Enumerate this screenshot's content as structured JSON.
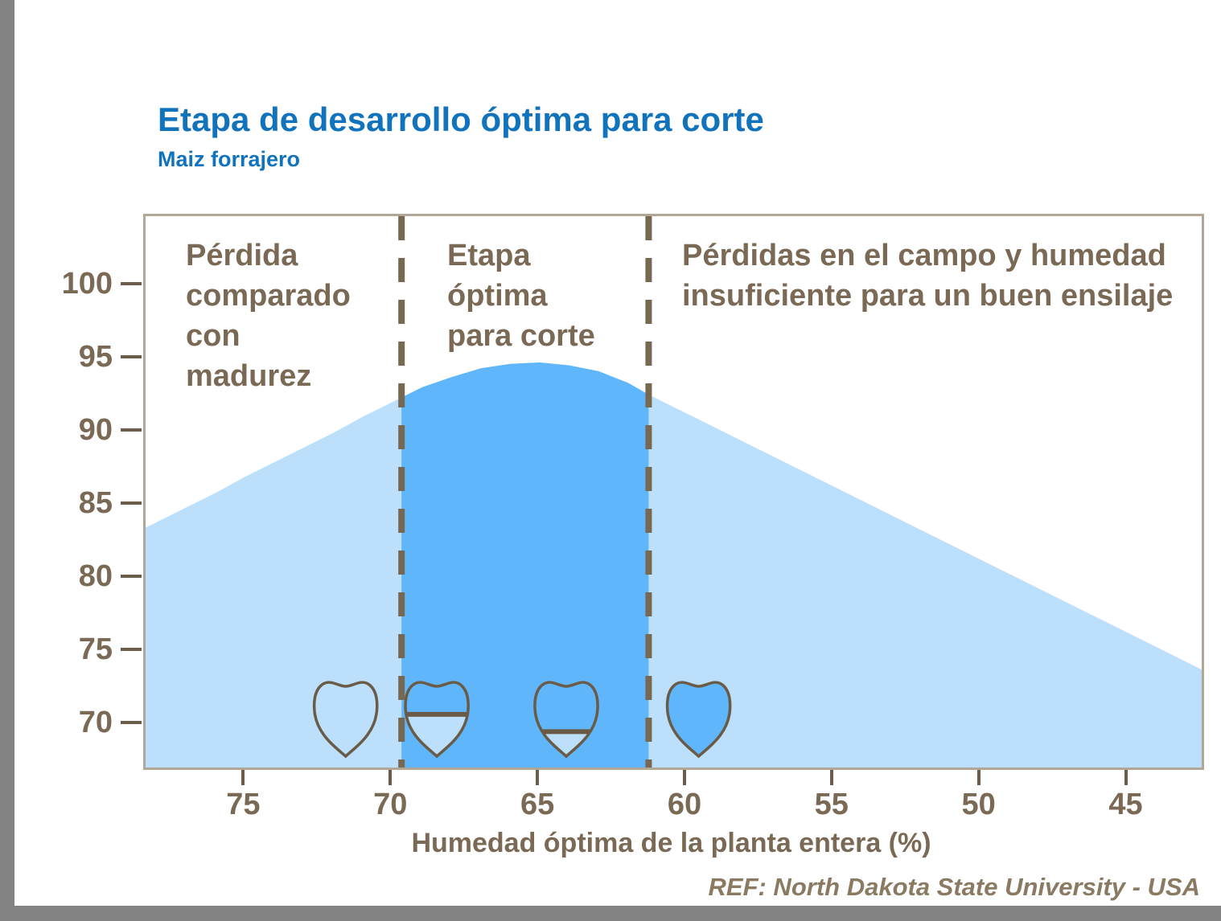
{
  "page": {
    "title": "Etapa de desarrollo óptima para corte",
    "subtitle": "Maiz forrajero",
    "xaxis_title": "Humedad óptima de la planta entera (%)",
    "reference": "REF: North Dakota State University - USA"
  },
  "colors": {
    "title_blue": "#1273bd",
    "text_brown": "#7a6a55",
    "area_light": "#bcdffb",
    "area_dark": "#60b6fa",
    "axis_line": "#b2a697",
    "dash_line": "#776851",
    "kernel_outline": "#6a5b47",
    "frame_gray": "#838383"
  },
  "chart_data": {
    "type": "area",
    "title": "Etapa de desarrollo óptima para corte",
    "subtitle": "Maiz forrajero",
    "xlabel": "Humedad óptima de la planta entera (%)",
    "ylabel": "",
    "grid": false,
    "legend": false,
    "x_axis": {
      "reversed": true,
      "left_value": 78.4,
      "right_value": 42.5,
      "ticks": [
        75,
        70,
        65,
        60,
        55,
        50,
        45
      ]
    },
    "y_axis": {
      "top_value": 104.8,
      "bottom_value": 67.1,
      "ticks": [
        100,
        95,
        90,
        85,
        80,
        75,
        70
      ]
    },
    "optimal_range": {
      "from": 69.7,
      "to": 61.3
    },
    "series": [
      {
        "points": [
          [
            78.4,
            83.5
          ],
          [
            77,
            84.9
          ],
          [
            76,
            85.9
          ],
          [
            75,
            87.0
          ],
          [
            74,
            88.0
          ],
          [
            73,
            89.0
          ],
          [
            72,
            90.0
          ],
          [
            71,
            91.1
          ],
          [
            70,
            92.1
          ],
          [
            69.7,
            92.4
          ],
          [
            69,
            93.1
          ],
          [
            68,
            93.8
          ],
          [
            67,
            94.4
          ],
          [
            66,
            94.7
          ],
          [
            65,
            94.8
          ],
          [
            64,
            94.6
          ],
          [
            63,
            94.2
          ],
          [
            62,
            93.4
          ],
          [
            61.3,
            92.6
          ],
          [
            60,
            91.3
          ],
          [
            58,
            89.3
          ],
          [
            56,
            87.3
          ],
          [
            54,
            85.3
          ],
          [
            52,
            83.3
          ],
          [
            50,
            81.3
          ],
          [
            48,
            79.3
          ],
          [
            46,
            77.3
          ],
          [
            44,
            75.3
          ],
          [
            42.5,
            73.8
          ]
        ]
      }
    ],
    "regions": [
      {
        "id": "left",
        "label": "Pérdida\ncomparado\ncon\nmadurez"
      },
      {
        "id": "optimal",
        "label": "Etapa\nóptima\npara corte"
      },
      {
        "id": "right",
        "label": "Pérdidas en el campo y humedad\ninsuficiente para un buen ensilaje"
      }
    ],
    "kernel_stages": [
      {
        "moisture": 71.6,
        "milk_line_fraction": 0
      },
      {
        "moisture": 68.5,
        "milk_line_fraction": 0.47
      },
      {
        "moisture": 64.1,
        "milk_line_fraction": 0.68
      },
      {
        "moisture": 59.6,
        "milk_line_fraction": 1
      }
    ]
  }
}
